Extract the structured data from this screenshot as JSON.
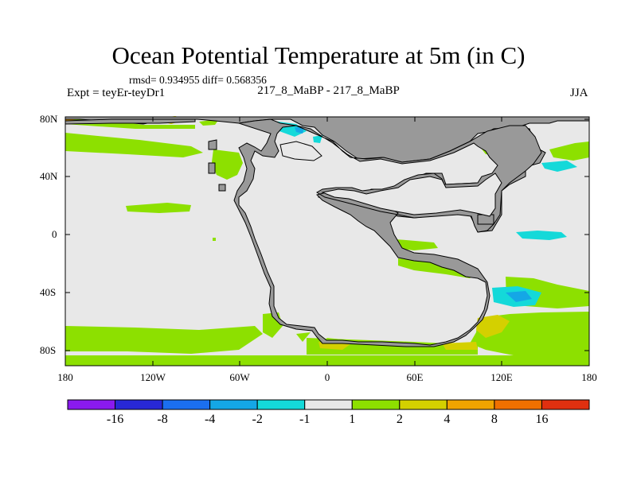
{
  "title": "Ocean Potential Temperature at 5m (in C)",
  "stats_line": "rmsd= 0.934955 diff= 0.568356",
  "experiment_label": "Expt = teyEr-teyDr1",
  "comparison_label": "217_8_MaBP - 217_8_MaBP",
  "season_label": "JJA",
  "y_ticks": [
    "80N",
    "40N",
    "0",
    "40S",
    "80S"
  ],
  "x_ticks": [
    "180",
    "120W",
    "60W",
    "0",
    "60E",
    "120E",
    "180"
  ],
  "colorbar": {
    "labels": [
      "-16",
      "-8",
      "-4",
      "-2",
      "-1",
      "1",
      "2",
      "4",
      "8",
      "16"
    ],
    "colors": [
      "#8a1aef",
      "#2828d6",
      "#1b6ff0",
      "#14a7e6",
      "#14d9d9",
      "#e8e8e8",
      "#8de000",
      "#d4d000",
      "#f0a400",
      "#f07000",
      "#e03010"
    ]
  },
  "map_colors": {
    "ocean_neutral": "#e8e8e8",
    "land": "#999999",
    "warm_small": "#8de000",
    "warm_mid": "#d4d000",
    "warm_large": "#f0a400",
    "cool_small": "#14d9d9",
    "cool_mid": "#14a7e6"
  }
}
